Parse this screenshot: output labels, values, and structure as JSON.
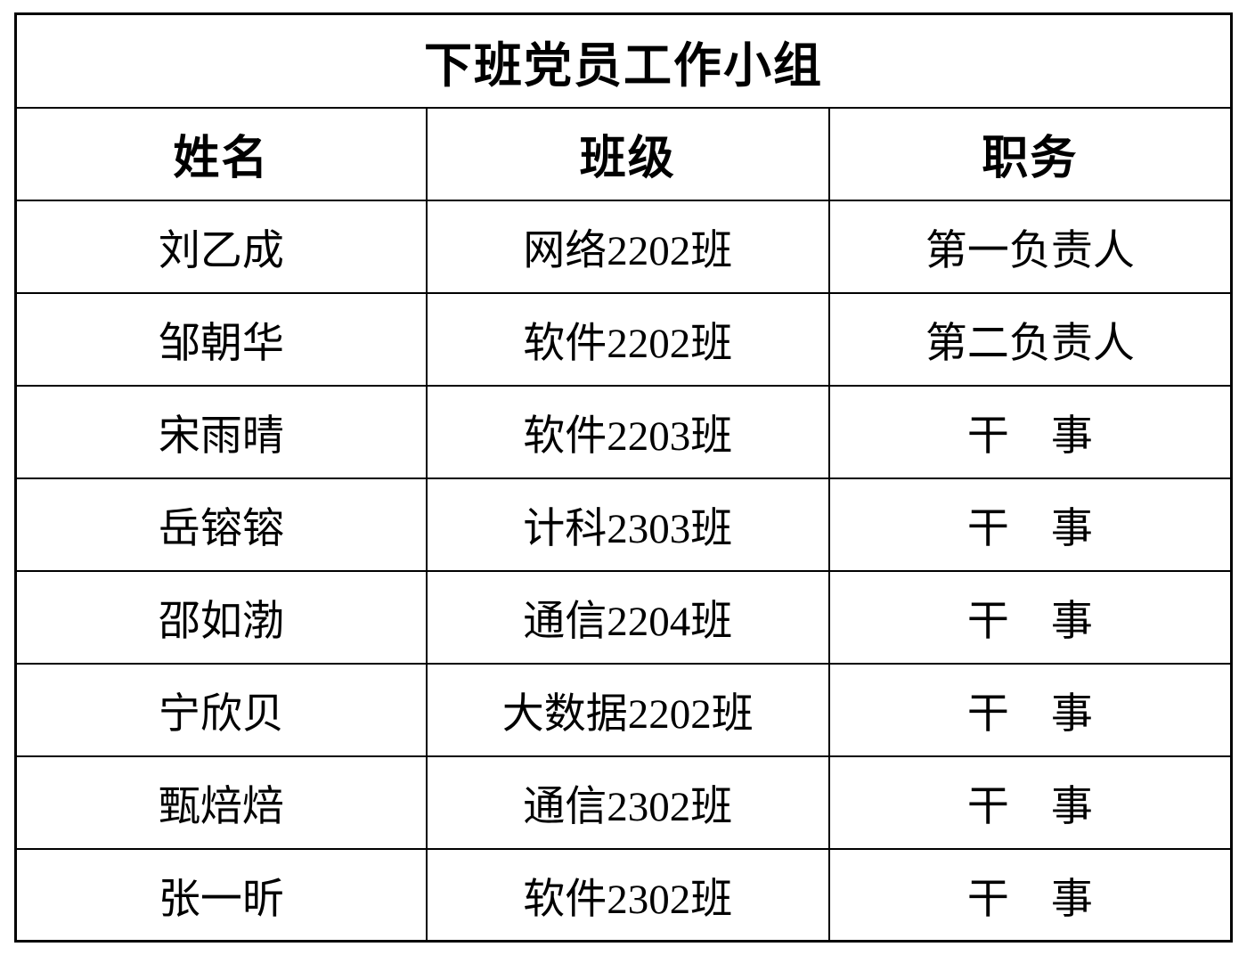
{
  "table": {
    "title": "下班党员工作小组",
    "columns": {
      "name": "姓名",
      "class": "班级",
      "position": "职务"
    },
    "rows": [
      {
        "name": "刘乙成",
        "class": "网络2202班",
        "position": "第一负责人"
      },
      {
        "name": "邹朝华",
        "class": "软件2202班",
        "position": "第二负责人"
      },
      {
        "name": "宋雨晴",
        "class": "软件2203班",
        "position": "干　事"
      },
      {
        "name": "岳镕镕",
        "class": "计科2303班",
        "position": "干　事"
      },
      {
        "name": "邵如渤",
        "class": "通信2204班",
        "position": "干　事"
      },
      {
        "name": "宁欣贝",
        "class": "大数据2202班",
        "position": "干　事"
      },
      {
        "name": "甄焙焙",
        "class": "通信2302班",
        "position": "干　事"
      },
      {
        "name": "张一昕",
        "class": "软件2302班",
        "position": "干　事"
      }
    ],
    "colors": {
      "border": "#000000",
      "text": "#000000",
      "background": "#ffffff"
    }
  }
}
